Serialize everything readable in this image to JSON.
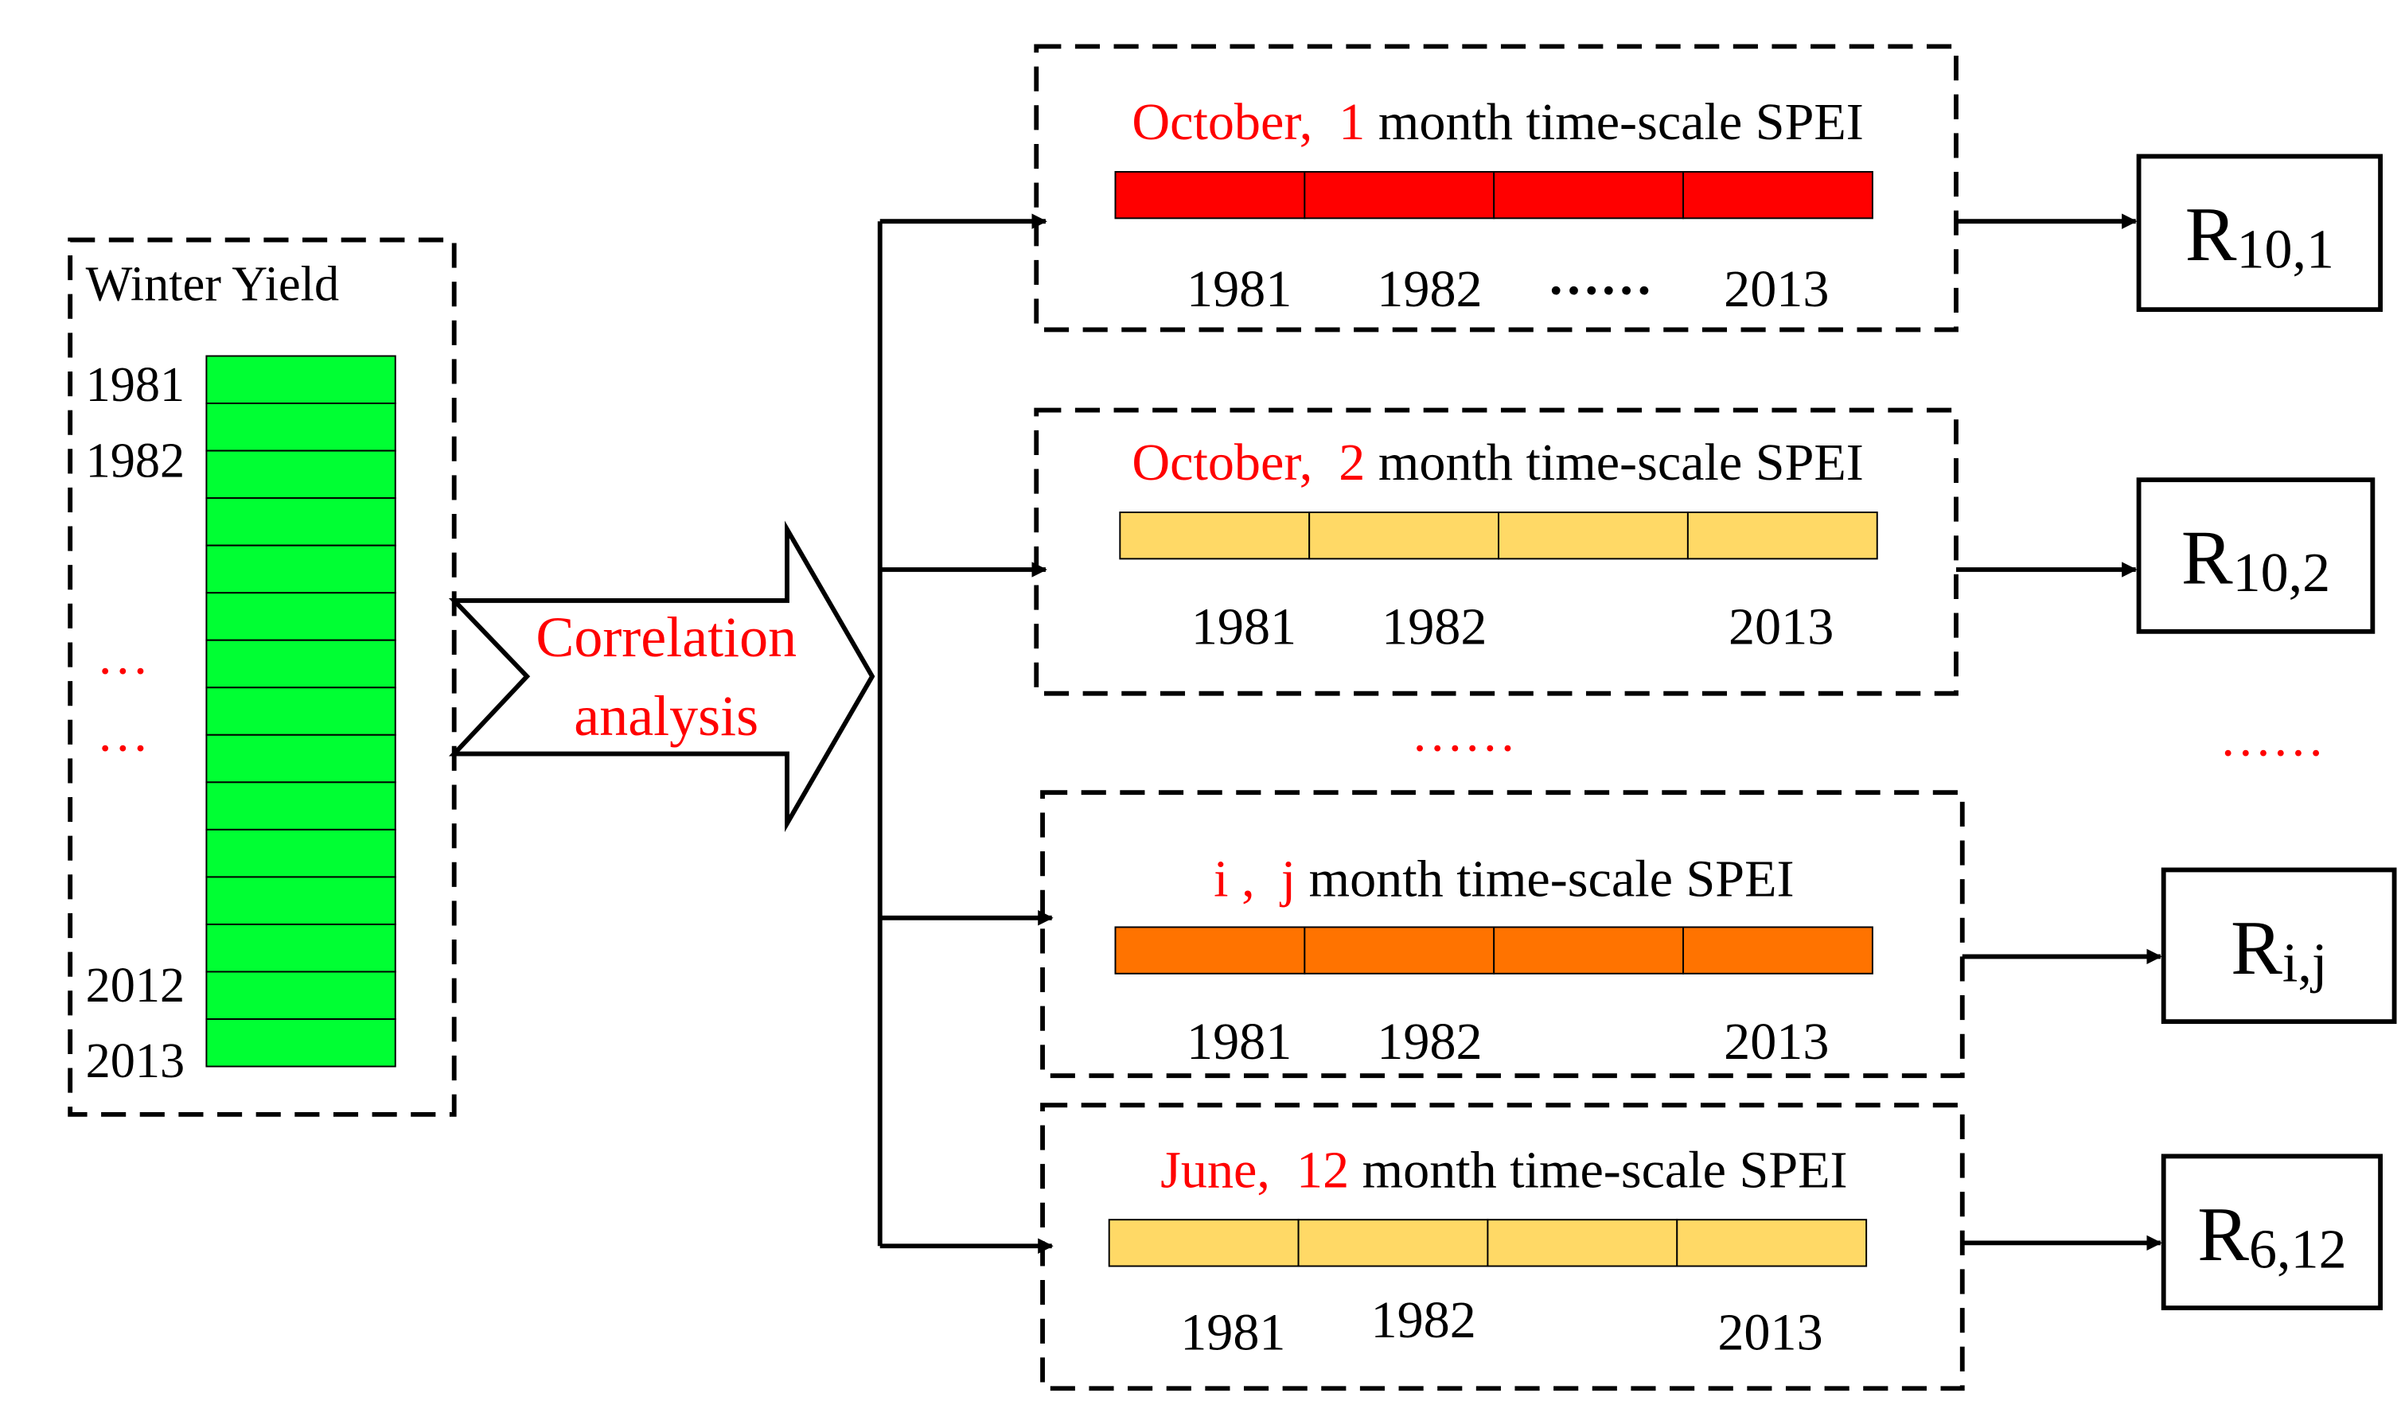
{
  "left": {
    "title": "Winter Yield",
    "years": [
      "1981",
      "1982",
      "2012",
      "2013"
    ],
    "ellipsis": [
      "…",
      "…"
    ],
    "color": "#00ff33"
  },
  "arrow": {
    "label": [
      "Correlation",
      "analysis"
    ]
  },
  "panels": [
    {
      "month": "October,",
      "scale": "1",
      "text": "month time-scale SPEI",
      "years": [
        "1981",
        "1982",
        "2013"
      ],
      "ellipsis": "……",
      "color": "#ff0000",
      "result": {
        "symbol": "R",
        "subscript": "10,1"
      }
    },
    {
      "month": "October,",
      "scale": "2",
      "text": "month time-scale SPEI",
      "years": [
        "1981",
        "1982",
        "2013"
      ],
      "color": "#ffd966",
      "result": {
        "symbol": "R",
        "subscript": "10,2"
      }
    },
    {
      "month": "i ,",
      "scale": "j",
      "text": "month time-scale SPEI",
      "years": [
        "1981",
        "1982",
        "2013"
      ],
      "color": "#ff7300",
      "result": {
        "symbol": "R",
        "subscript": "i,j"
      }
    },
    {
      "month": "June,",
      "scale": "12",
      "text": "month time-scale SPEI",
      "years": [
        "1981",
        "1982",
        "2013"
      ],
      "color": "#ffd966",
      "result": {
        "symbol": "R",
        "subscript": "6,12"
      }
    }
  ],
  "gap_ellipsis": [
    "……",
    "……"
  ]
}
